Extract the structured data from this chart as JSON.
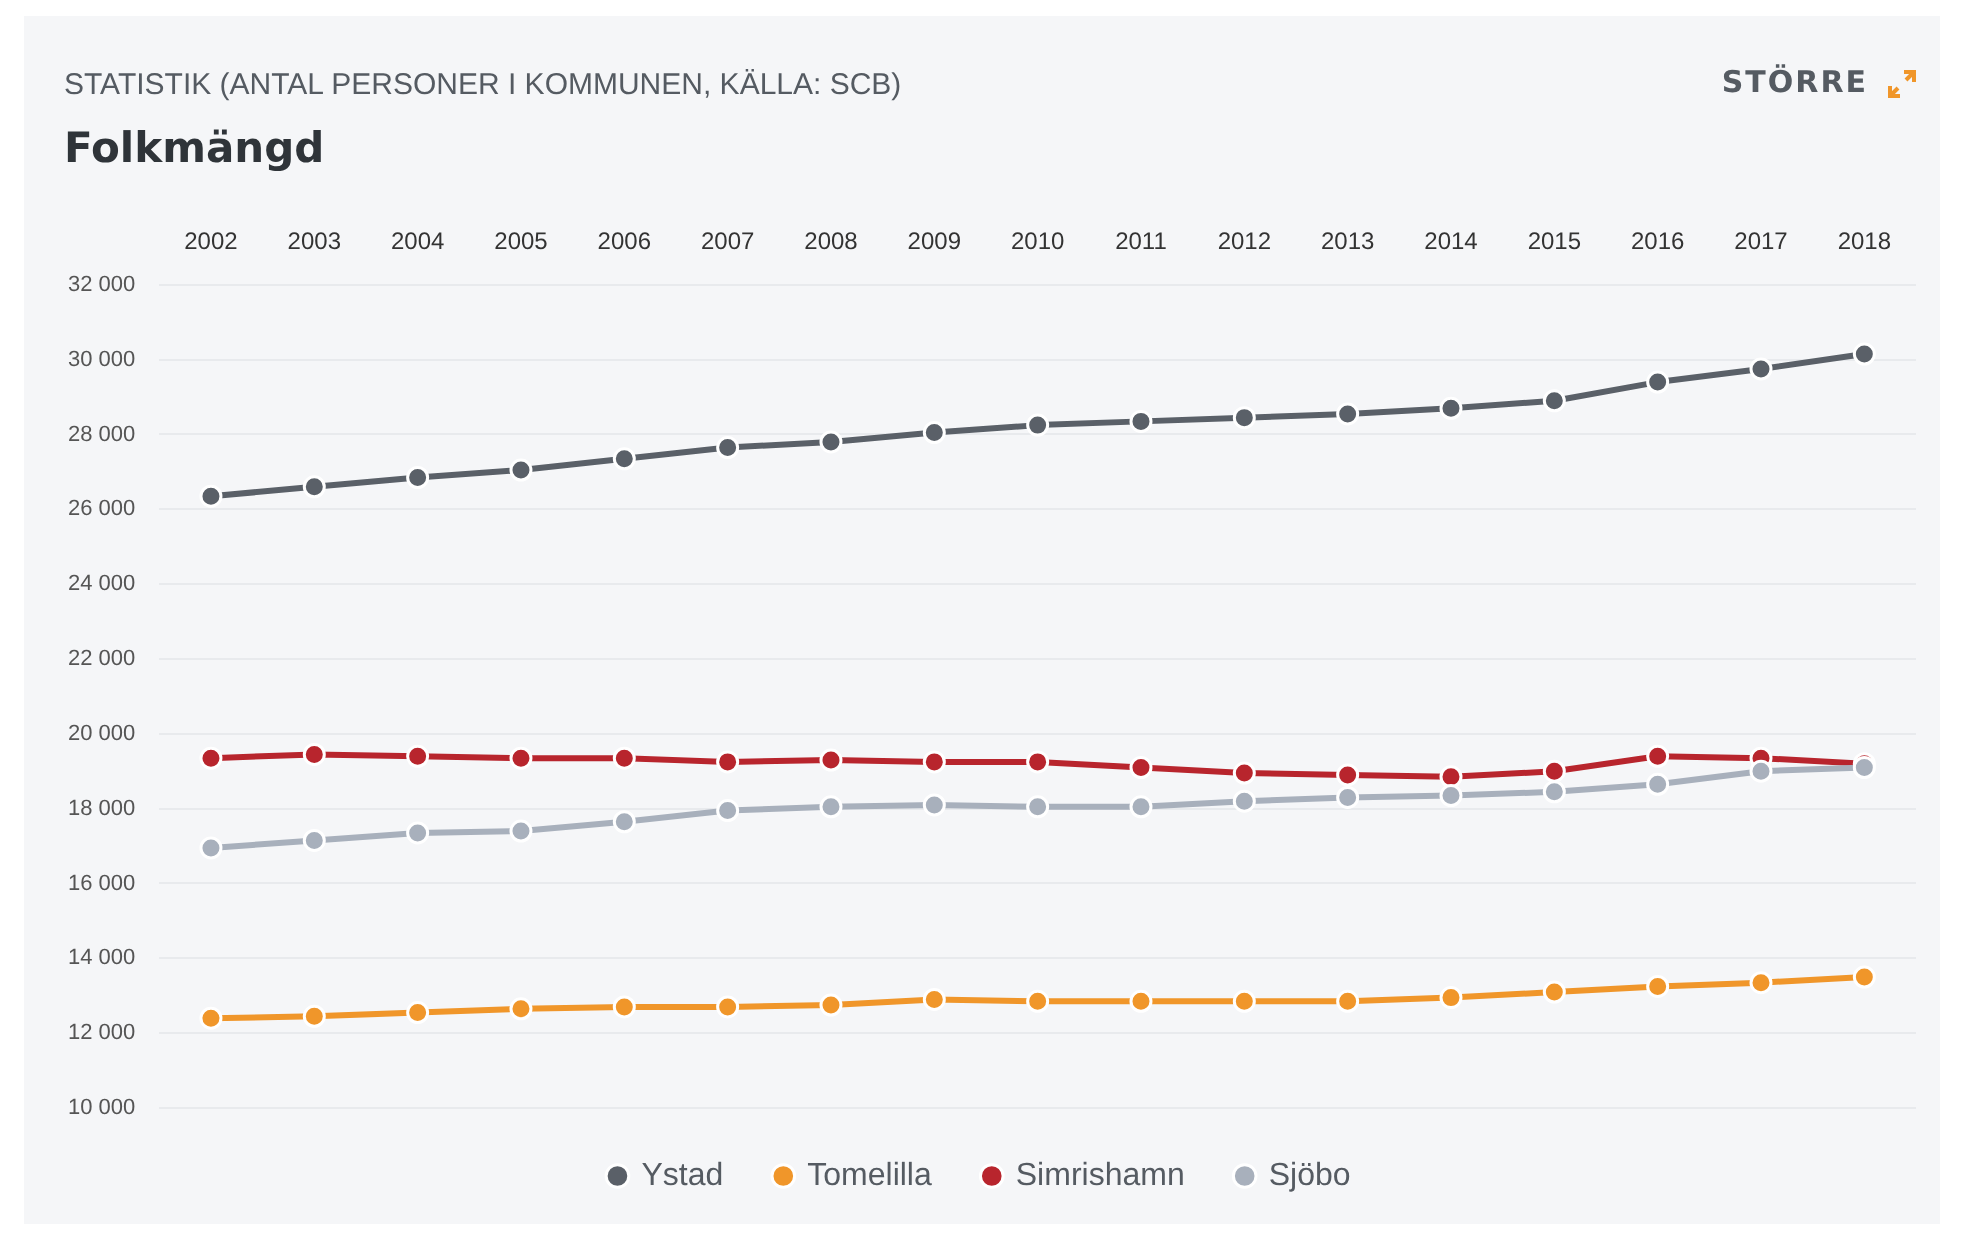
{
  "chart_data": {
    "type": "line",
    "subtitle": "STATISTIK (ANTAL PERSONER I KOMMUNEN, KÄLLA: SCB)",
    "title": "Folkmängd",
    "annotations": [
      "STÖRRE"
    ],
    "categories": [
      "2002",
      "2003",
      "2004",
      "2005",
      "2006",
      "2007",
      "2008",
      "2009",
      "2010",
      "2011",
      "2012",
      "2013",
      "2014",
      "2015",
      "2016",
      "2017",
      "2018"
    ],
    "series": [
      {
        "name": "Ystad",
        "color": "#5a6068",
        "values": [
          26350,
          26600,
          26850,
          27050,
          27350,
          27650,
          27800,
          28050,
          28250,
          28350,
          28450,
          28550,
          28700,
          28900,
          29400,
          29750,
          30150
        ]
      },
      {
        "name": "Tomelilla",
        "color": "#f0962a",
        "values": [
          12400,
          12450,
          12550,
          12650,
          12700,
          12700,
          12750,
          12900,
          12850,
          12850,
          12850,
          12850,
          12950,
          13100,
          13250,
          13350,
          13500
        ]
      },
      {
        "name": "Simrishamn",
        "color": "#b8252d",
        "values": [
          19350,
          19450,
          19400,
          19350,
          19350,
          19250,
          19300,
          19250,
          19250,
          19100,
          18950,
          18900,
          18850,
          19000,
          19400,
          19350,
          19200
        ]
      },
      {
        "name": "Sjöbo",
        "color": "#a8b0bc",
        "values": [
          16950,
          17150,
          17350,
          17400,
          17650,
          17950,
          18050,
          18100,
          18050,
          18050,
          18200,
          18300,
          18350,
          18450,
          18650,
          19000,
          19100
        ]
      }
    ],
    "ylim": [
      10000,
      32000
    ],
    "yticks": [
      {
        "value": 10000,
        "label": "10 000"
      },
      {
        "value": 12000,
        "label": "12 000"
      },
      {
        "value": 14000,
        "label": "14 000"
      },
      {
        "value": 16000,
        "label": "16 000"
      },
      {
        "value": 18000,
        "label": "18 000"
      },
      {
        "value": 20000,
        "label": "20 000"
      },
      {
        "value": 22000,
        "label": "22 000"
      },
      {
        "value": 24000,
        "label": "24 000"
      },
      {
        "value": 26000,
        "label": "26 000"
      },
      {
        "value": 28000,
        "label": "28 000"
      },
      {
        "value": 30000,
        "label": "30 000"
      },
      {
        "value": 32000,
        "label": "32 000"
      }
    ],
    "grid": "y",
    "legend": "bottom",
    "marker": "circle",
    "line_style": "solid"
  }
}
